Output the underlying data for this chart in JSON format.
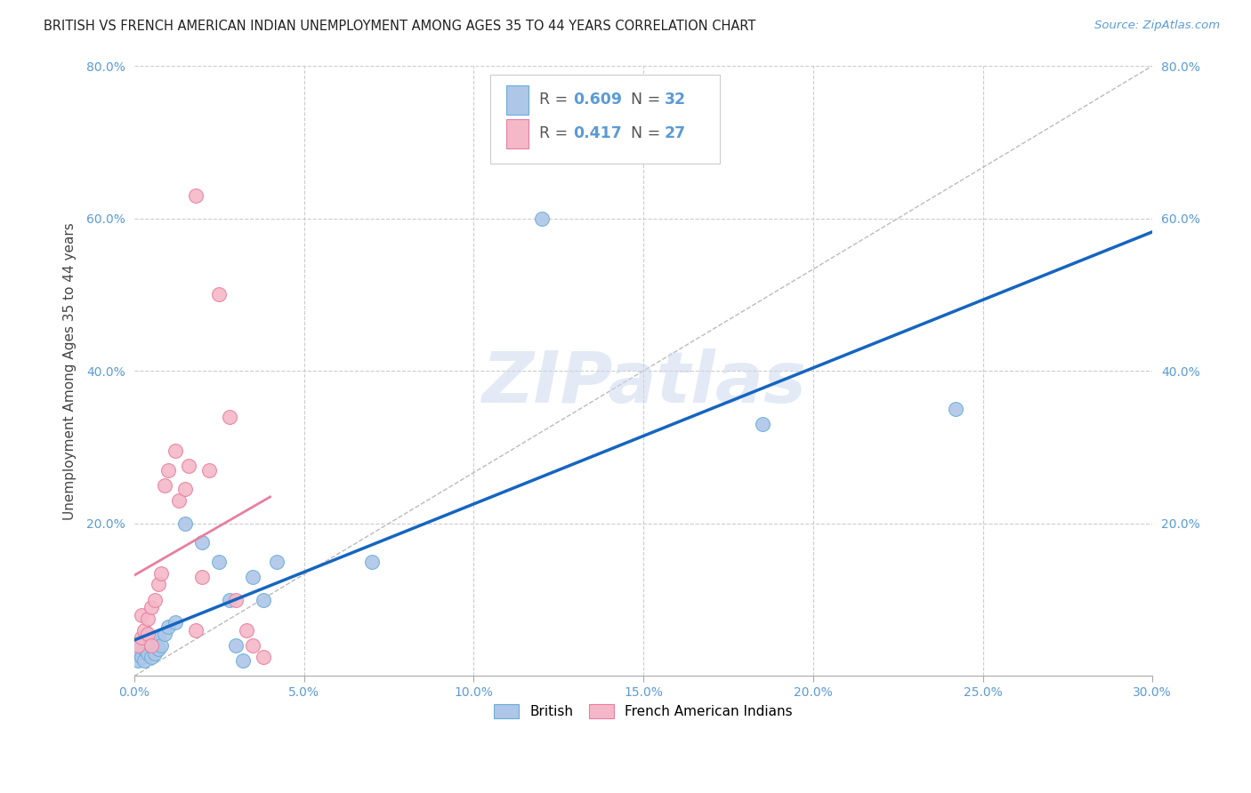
{
  "title": "BRITISH VS FRENCH AMERICAN INDIAN UNEMPLOYMENT AMONG AGES 35 TO 44 YEARS CORRELATION CHART",
  "source": "Source: ZipAtlas.com",
  "ylabel": "Unemployment Among Ages 35 to 44 years",
  "xlim": [
    0,
    0.3
  ],
  "ylim": [
    0,
    0.8
  ],
  "british_color": "#aec6e8",
  "british_edge_color": "#6aafd6",
  "french_color": "#f4b8c8",
  "french_edge_color": "#e87fa0",
  "british_line_color": "#1565c0",
  "french_line_color": "#e87fa0",
  "ref_line_color": "#bbbbbb",
  "watermark": "ZIPatlas",
  "watermark_color": "#ccd9ef",
  "tick_color": "#5b9bd5",
  "text_color": "#444444",
  "legend_r_british": "0.609",
  "legend_n_british": "32",
  "legend_r_french": "0.417",
  "legend_n_french": "27",
  "british_x": [
    0.001,
    0.001,
    0.002,
    0.002,
    0.003,
    0.003,
    0.003,
    0.004,
    0.004,
    0.005,
    0.005,
    0.006,
    0.006,
    0.007,
    0.007,
    0.008,
    0.009,
    0.01,
    0.012,
    0.015,
    0.02,
    0.025,
    0.028,
    0.03,
    0.032,
    0.035,
    0.038,
    0.042,
    0.07,
    0.12,
    0.185,
    0.242
  ],
  "british_y": [
    0.02,
    0.035,
    0.025,
    0.04,
    0.02,
    0.035,
    0.05,
    0.03,
    0.045,
    0.025,
    0.04,
    0.03,
    0.05,
    0.035,
    0.05,
    0.04,
    0.055,
    0.065,
    0.07,
    0.2,
    0.175,
    0.15,
    0.1,
    0.04,
    0.02,
    0.13,
    0.1,
    0.15,
    0.15,
    0.6,
    0.33,
    0.35
  ],
  "french_x": [
    0.001,
    0.002,
    0.002,
    0.003,
    0.004,
    0.004,
    0.005,
    0.005,
    0.006,
    0.007,
    0.008,
    0.009,
    0.01,
    0.012,
    0.013,
    0.015,
    0.016,
    0.018,
    0.02,
    0.022,
    0.025,
    0.028,
    0.03,
    0.033,
    0.035,
    0.038,
    0.018
  ],
  "french_y": [
    0.04,
    0.05,
    0.08,
    0.06,
    0.055,
    0.075,
    0.09,
    0.04,
    0.1,
    0.12,
    0.135,
    0.25,
    0.27,
    0.295,
    0.23,
    0.245,
    0.275,
    0.06,
    0.13,
    0.27,
    0.5,
    0.34,
    0.1,
    0.06,
    0.04,
    0.025,
    0.63
  ],
  "title_fontsize": 10.5,
  "source_fontsize": 9.5,
  "axis_label_fontsize": 11,
  "tick_fontsize": 10,
  "legend_fontsize": 12.5
}
